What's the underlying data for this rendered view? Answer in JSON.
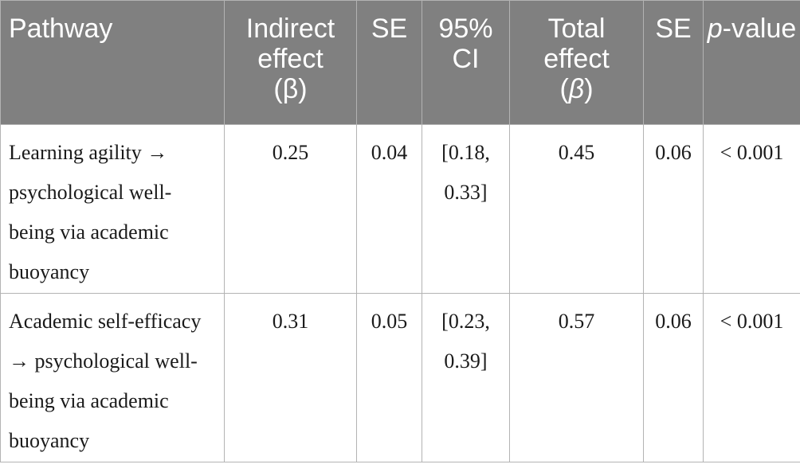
{
  "headers": {
    "pathway": "Pathway",
    "indirect_effect": "Indirect effect",
    "indirect_symbol": "(β)",
    "se_1": "SE",
    "ci": "95% CI",
    "total_effect": "Total effect",
    "total_symbol_open": "(",
    "total_symbol": "β",
    "total_symbol_close": ")",
    "se_2": "SE",
    "p": "p",
    "p_value": "-value"
  },
  "rows": [
    {
      "pathway": "Learning agility → psychological well-being via academic buoyancy",
      "indirect_effect": "0.25",
      "se_1": "0.04",
      "ci": "[0.18, 0.33]",
      "total_effect": "0.45",
      "se_2": "0.06",
      "p_value": "< 0.001"
    },
    {
      "pathway": "Academic self-efficacy → psychological well-being via academic buoyancy",
      "indirect_effect": "0.31",
      "se_1": "0.05",
      "ci": "[0.23, 0.39]",
      "total_effect": "0.57",
      "se_2": "0.06",
      "p_value": "< 0.001"
    }
  ]
}
